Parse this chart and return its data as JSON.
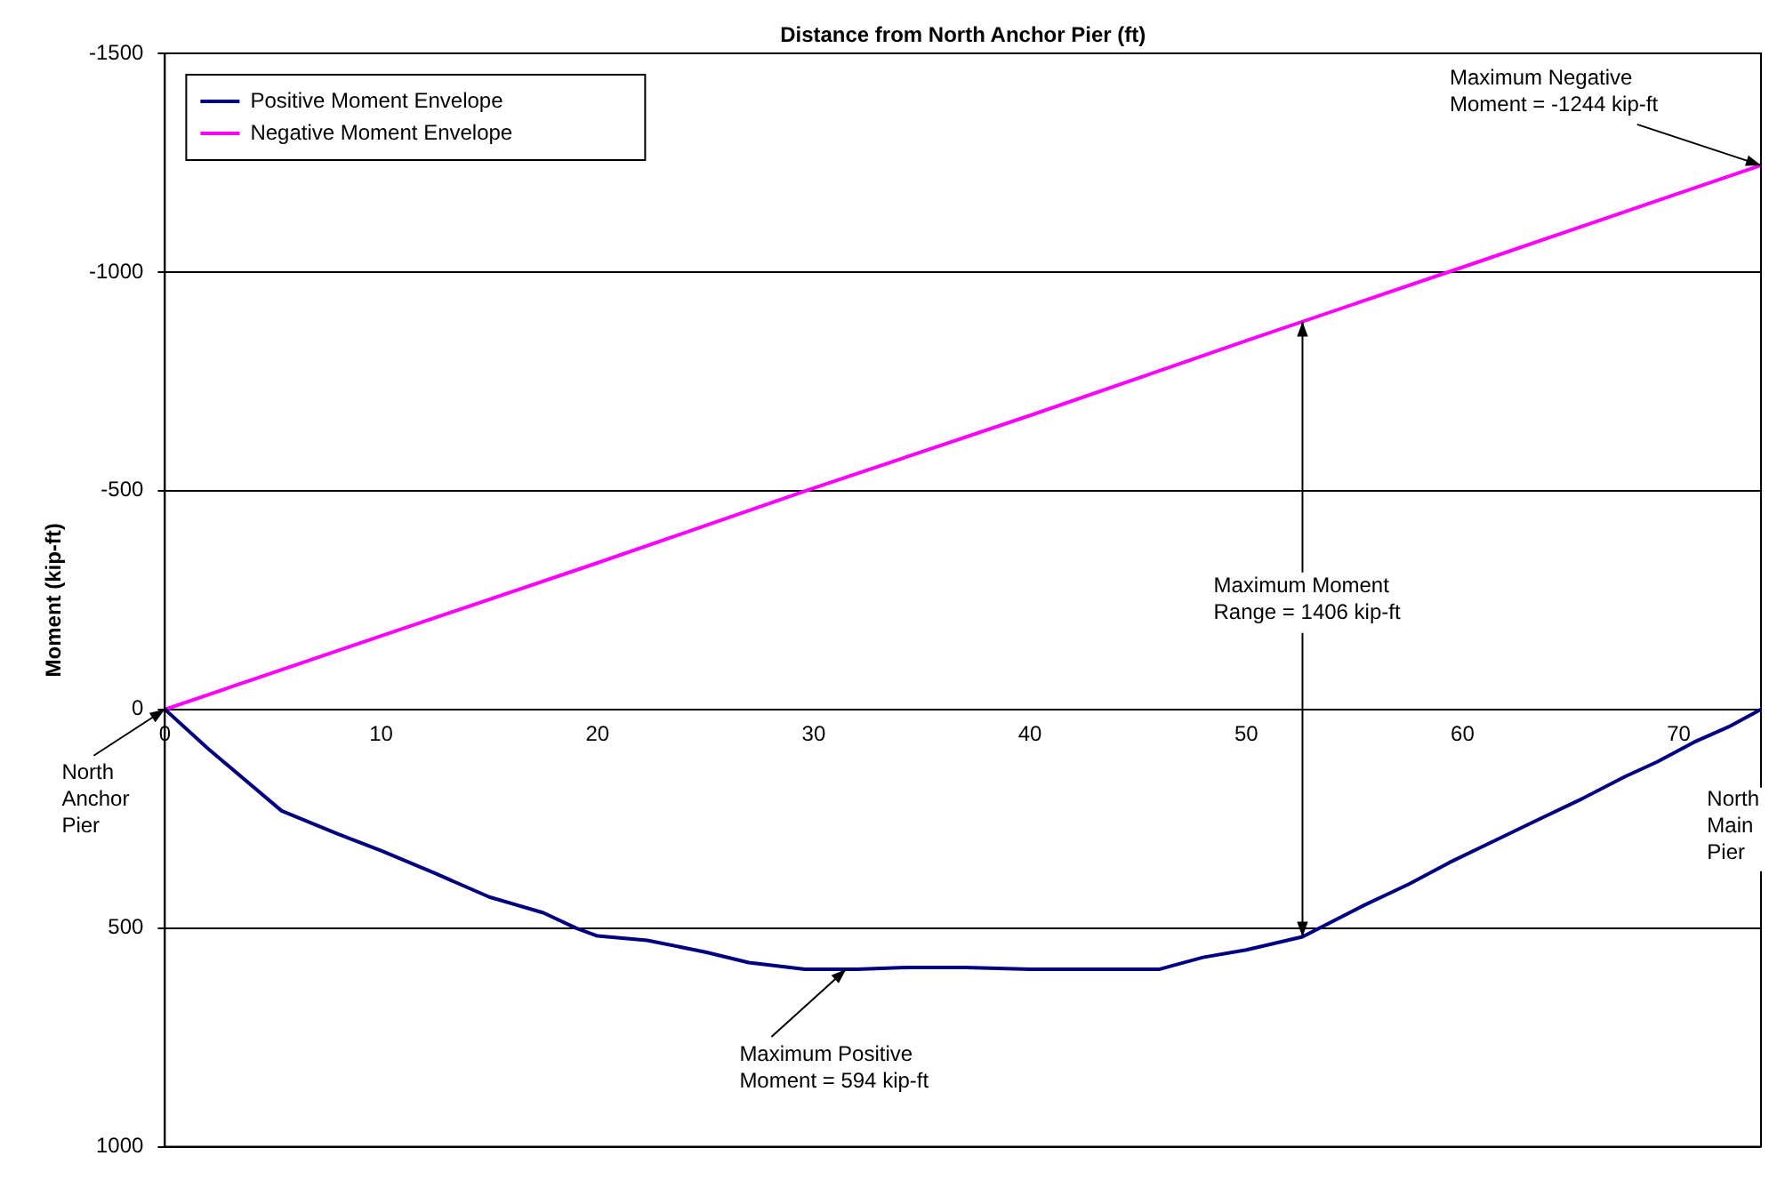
{
  "chart_data": {
    "type": "line",
    "xlabel": "Distance from North Anchor Pier (ft)",
    "ylabel": "Moment (kip-ft)",
    "xlim": [
      0,
      73.8
    ],
    "xticks": [
      0,
      10,
      20,
      30,
      40,
      50,
      60,
      70
    ],
    "ylim": [
      1000,
      -1500
    ],
    "yticks": [
      -1500,
      -1000,
      -500,
      0,
      500,
      1000
    ],
    "grid": "y",
    "legend": "top left",
    "marker": "none",
    "line_style": "solid",
    "series": [
      {
        "name": "Positive Moment Envelope",
        "color": "#000080",
        "x": [
          0,
          2,
          5.4,
          8,
          10,
          12.5,
          15,
          17.5,
          19,
          20,
          22.3,
          25,
          27,
          29.6,
          32,
          34.4,
          37,
          40,
          43,
          46,
          48,
          50,
          52.6,
          55.4,
          57.5,
          59.4,
          61.5,
          63.5,
          65.5,
          67.5,
          69,
          70.7,
          72.3,
          73.8
        ],
        "values": [
          0,
          90,
          232,
          285,
          323,
          375,
          429,
          465,
          500,
          518,
          528,
          555,
          579,
          594,
          594,
          590,
          590,
          594,
          594,
          594,
          567,
          550,
          520,
          449,
          400,
          350,
          300,
          252,
          205,
          154,
          120,
          75,
          40,
          0
        ]
      },
      {
        "name": "Negative Moment Envelope",
        "color": "#ff00ff",
        "x": [
          0,
          10,
          20,
          30,
          40,
          50,
          60,
          70,
          73.8
        ],
        "values": [
          0,
          -168,
          -335,
          -506,
          -672,
          -843,
          -1011,
          -1180,
          -1244
        ]
      }
    ],
    "annotations": [
      {
        "text": "Maximum Negative\nMoment = -1244 kip-ft",
        "x": 73.8,
        "y": -1244
      },
      "Maximum Moment\nRange = 1406 kip-ft",
      {
        "text": "Maximum Positive\nMoment = 594 kip-ft",
        "x": 31.5,
        "y": 594
      },
      {
        "text": "North\nAnchor\nPier",
        "x": 0,
        "y": 0
      },
      "North\nMain\nPier"
    ]
  }
}
